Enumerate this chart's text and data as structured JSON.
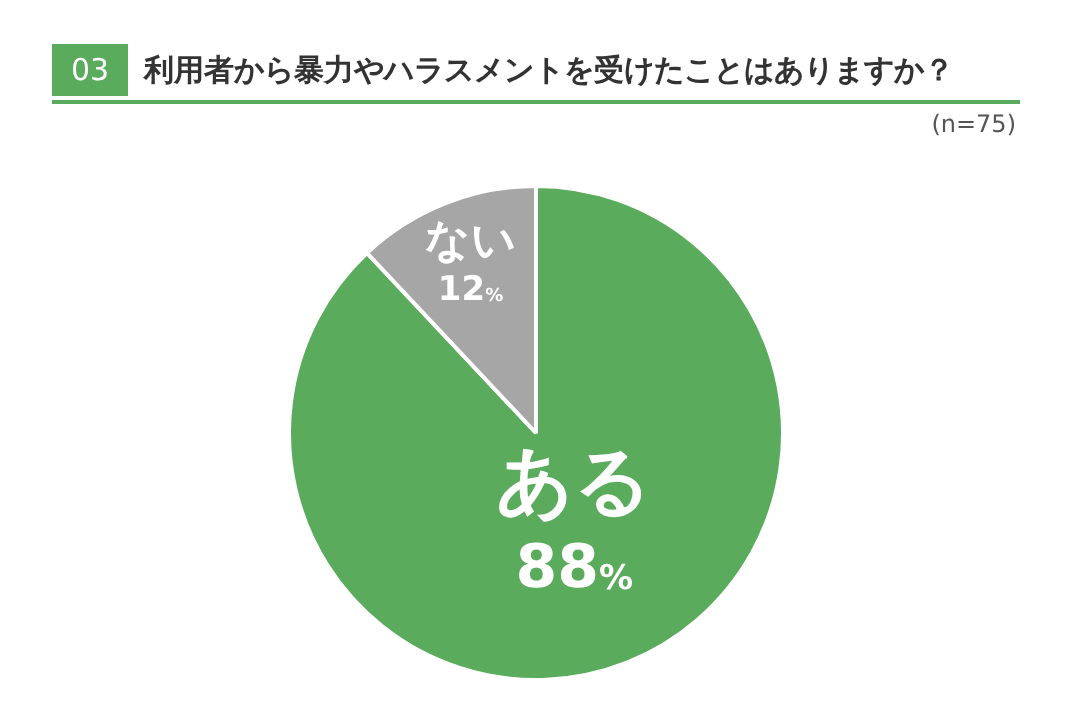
{
  "chart_data": {
    "type": "pie",
    "title": "利用者から暴力やハラスメントを受けたことはありますか？",
    "annotations": [
      "03",
      "(n=75)"
    ],
    "categories": [
      "ある",
      "ない"
    ],
    "values": [
      88,
      12
    ],
    "colors": [
      "#5aab5c",
      "#a6a6a6"
    ],
    "value_labels": [
      "88%",
      "12%"
    ],
    "legend": false
  }
}
